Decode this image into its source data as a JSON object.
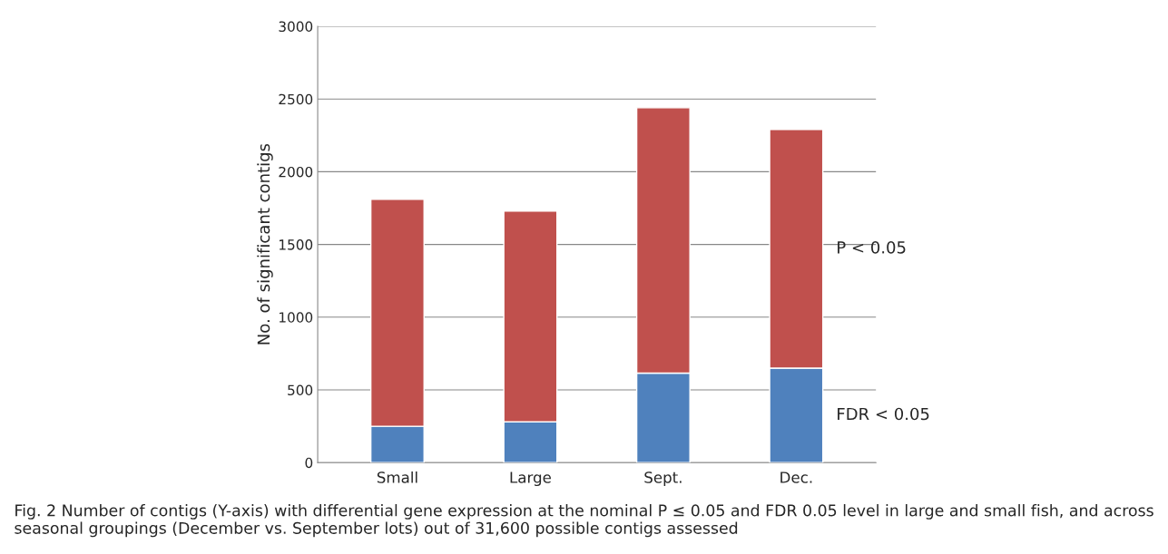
{
  "chart_data": {
    "type": "bar",
    "stacked": true,
    "ylabel": "No. of significant contigs",
    "categories": [
      "Small",
      "Large",
      "Sept.",
      "Dec."
    ],
    "series": [
      {
        "name": "FDR < 0.05",
        "color": "#4f81bd",
        "values": [
          250,
          280,
          615,
          650
        ]
      },
      {
        "name": "P < 0.05",
        "color": "#c0504d",
        "values": [
          1560,
          1450,
          1825,
          1640
        ]
      }
    ],
    "ylim": [
      0,
      3000
    ],
    "yticks": [
      0,
      500,
      1000,
      1500,
      2000,
      2500,
      3000
    ],
    "grid": "y",
    "legend": false,
    "annotations": [
      "Fig. 2 Number of contigs (Y-axis) with differential gene expression at the nominal P ≤ 0.05 and FDR 0.05 level in large and small fish, and across seasonal groupings (December vs. September lots) out of 31,600 possible contigs assessed"
    ]
  }
}
